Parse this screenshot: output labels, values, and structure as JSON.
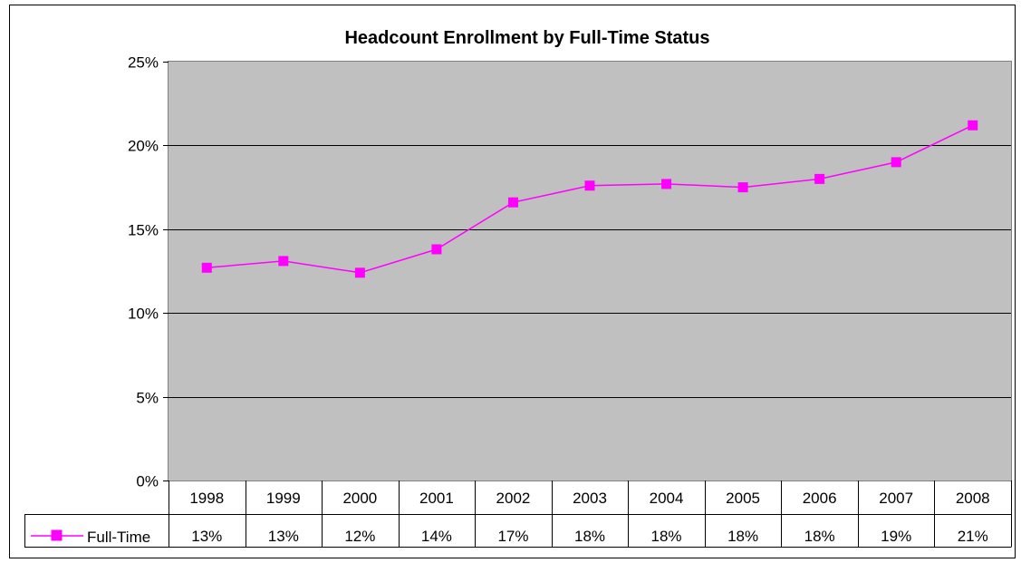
{
  "chart_data": {
    "type": "line",
    "title": "Headcount Enrollment by Full-Time Status",
    "xlabel": "",
    "ylabel": "",
    "categories": [
      "1998",
      "1999",
      "2000",
      "2001",
      "2002",
      "2003",
      "2004",
      "2005",
      "2006",
      "2007",
      "2008"
    ],
    "series": [
      {
        "name": "Full-Time",
        "values": [
          12.7,
          13.1,
          12.4,
          13.8,
          16.6,
          17.6,
          17.7,
          17.5,
          18.0,
          19.0,
          21.2
        ],
        "labels": [
          "13%",
          "13%",
          "12%",
          "14%",
          "17%",
          "18%",
          "18%",
          "18%",
          "18%",
          "19%",
          "21%"
        ]
      }
    ],
    "ylim": [
      0,
      25
    ],
    "yticks": [
      0,
      5,
      10,
      15,
      20,
      25
    ],
    "ytick_labels": [
      "0%",
      "5%",
      "10%",
      "15%",
      "20%",
      "25%"
    ],
    "grid": true,
    "data_table": true,
    "colors": {
      "series": "#ff00ff",
      "plot_area": "#c0c0c0"
    }
  }
}
